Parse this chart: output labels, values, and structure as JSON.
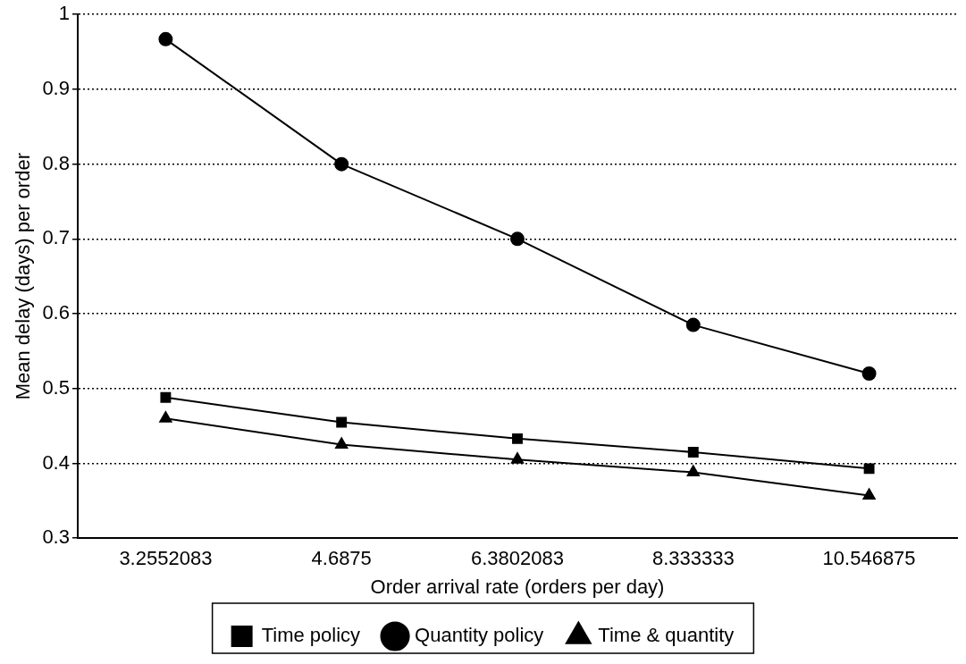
{
  "chart_data": {
    "type": "line",
    "xlabel": "Order arrival rate (orders per day)",
    "ylabel": "Mean delay (days) per order",
    "categories": [
      "3.2552083",
      "4.6875",
      "6.3802083",
      "8.333333",
      "10.546875"
    ],
    "series": [
      {
        "name": "Time policy",
        "color": "#000000",
        "marker": "square",
        "values": [
          0.488,
          0.455,
          0.433,
          0.415,
          0.393
        ]
      },
      {
        "name": "Quantity policy",
        "color": "#000000",
        "marker": "circle",
        "values": [
          0.967,
          0.8,
          0.7,
          0.585,
          0.52
        ]
      },
      {
        "name": "Time & quantity",
        "color": "#000000",
        "marker": "triangle",
        "values": [
          0.46,
          0.425,
          0.405,
          0.388,
          0.357
        ]
      }
    ],
    "ylim": [
      0.3,
      1
    ],
    "yticks": [
      0.3,
      0.4,
      0.5,
      0.6,
      0.7,
      0.8,
      0.9,
      1
    ],
    "grid": "y",
    "legend": "bottom",
    "line_style": "solid"
  }
}
